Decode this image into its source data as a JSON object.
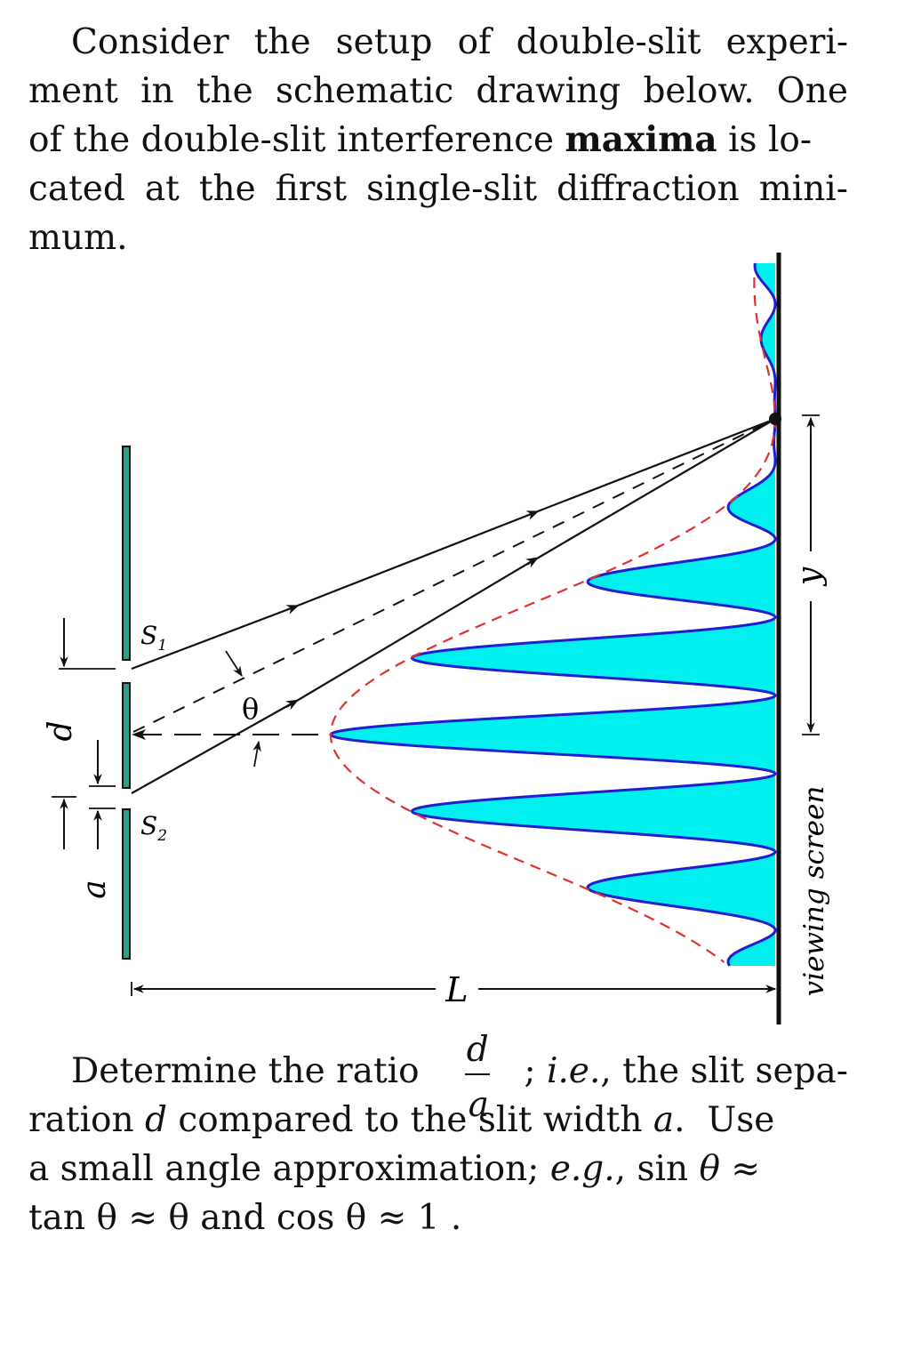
{
  "intro": {
    "line1": [
      "Consider",
      "the",
      "setup",
      "of",
      "double-slit",
      "experi-"
    ],
    "line2": [
      "ment",
      "in",
      "the",
      "schematic",
      "drawing",
      "below.",
      "One"
    ],
    "line3_a": "of the double-slit interference ",
    "line3_bold": "maxima",
    "line3_b": " is lo-",
    "line4": [
      "cated",
      "at",
      "the",
      "first",
      "single-slit",
      "diffraction",
      "mini-"
    ],
    "line5": "mum."
  },
  "figure": {
    "label_s1": "S",
    "label_s1_sub": "1",
    "label_s2": "S",
    "label_s2_sub": "2",
    "label_theta": "θ",
    "label_d": "d",
    "label_a": "a",
    "label_L": "L",
    "label_y": "y",
    "label_screen": "viewing screen",
    "colors": {
      "pattern_fill": "#00f0f0",
      "pattern_stroke": "#1f1fd0",
      "envelope": "#e03030",
      "slit_fill": "#2a9e88",
      "ink": "#111111"
    }
  },
  "question": {
    "l1_a": "Determine the ratio ",
    "frac_num": "d",
    "frac_den": "a",
    "l1_b": "; ",
    "l1_ie": "i.e.",
    "l1_c": ", the slit sepa-",
    "l2_a": "ration ",
    "l2_d": "d",
    "l2_b": " compared to the slit width ",
    "l2_a_var": "a",
    "l2_c": ".  Use",
    "l3_a": "a small angle approximation; ",
    "l3_eg": "e.g.",
    "l3_b": ", sin ",
    "l3_theta": "θ",
    "l3_c": " ≈",
    "l4": "tan θ ≈ θ and cos θ ≈ 1 ."
  }
}
